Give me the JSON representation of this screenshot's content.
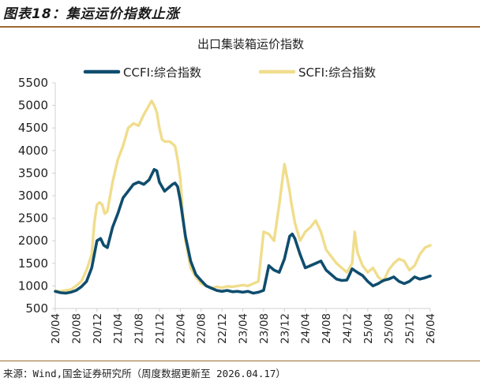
{
  "header": {
    "figure_title": "图表18：集运运价指数止涨"
  },
  "footer": {
    "source": "来源：Wind,国金证券研究所（周度数据更新至 2026.04.17）"
  },
  "colors": {
    "ccfi": "#0f4d6e",
    "scfi": "#f0dd8c",
    "rule": "#9a6a2f",
    "axis": "#d0d0d0"
  },
  "chart_data": {
    "type": "line",
    "title": "出口集装箱运价指数",
    "xlabel": "",
    "ylabel": "",
    "ylim": [
      500,
      5500
    ],
    "yticks": [
      500,
      1000,
      1500,
      2000,
      2500,
      3000,
      3500,
      4000,
      4500,
      5000,
      5500
    ],
    "xlim": [
      0,
      72
    ],
    "xtick_positions": [
      0,
      4,
      8,
      12,
      16,
      20,
      24,
      28,
      32,
      36,
      40,
      44,
      48,
      52,
      56,
      60,
      64,
      68,
      72
    ],
    "xtick_labels": [
      "20/04",
      "20/08",
      "20/12",
      "21/04",
      "21/08",
      "21/12",
      "22/04",
      "22/08",
      "22/12",
      "23/04",
      "23/08",
      "23/12",
      "24/04",
      "24/08",
      "24/12",
      "25/04",
      "25/08",
      "25/12",
      "26/04"
    ],
    "legend_position": "top",
    "series": [
      {
        "name": "CCFI:综合指数",
        "x": [
          0,
          1,
          2,
          3,
          4,
          5,
          6,
          7,
          8,
          8.7,
          9.3,
          10,
          11,
          12,
          13,
          14,
          15,
          16,
          17,
          18,
          19,
          19.5,
          20,
          20.5,
          21,
          22,
          22.5,
          23,
          23.5,
          24,
          24.5,
          25,
          26,
          27,
          28,
          29,
          30,
          31,
          32,
          33,
          34,
          35,
          36,
          37,
          38,
          39,
          40,
          41,
          42,
          43,
          44,
          45,
          45.5,
          46,
          47,
          48,
          49,
          50,
          51,
          52,
          53,
          54,
          55,
          56,
          56.5,
          57,
          58,
          59,
          60,
          61,
          62,
          63,
          64,
          65,
          66,
          67,
          68,
          69,
          70,
          71,
          72
        ],
        "values": [
          880,
          850,
          840,
          860,
          900,
          980,
          1100,
          1400,
          2000,
          2050,
          1900,
          1850,
          2300,
          2600,
          2950,
          3100,
          3250,
          3300,
          3250,
          3350,
          3580,
          3550,
          3300,
          3200,
          3100,
          3200,
          3250,
          3280,
          3200,
          2900,
          2500,
          2100,
          1550,
          1250,
          1120,
          1000,
          950,
          900,
          880,
          900,
          870,
          880,
          860,
          880,
          840,
          860,
          900,
          1450,
          1350,
          1300,
          1600,
          2100,
          2150,
          2050,
          1700,
          1400,
          1450,
          1500,
          1550,
          1350,
          1250,
          1150,
          1120,
          1130,
          1250,
          1380,
          1300,
          1230,
          1100,
          1000,
          1050,
          1120,
          1150,
          1200,
          1100,
          1050,
          1100,
          1200,
          1150,
          1180,
          1220
        ]
      },
      {
        "name": "SCFI:综合指数",
        "x": [
          0,
          1,
          2,
          3,
          4,
          5,
          6,
          7,
          7.5,
          8,
          8.5,
          9,
          9.5,
          10,
          11,
          12,
          13,
          14,
          15,
          16,
          17,
          18,
          18.5,
          19,
          19.5,
          20,
          20.5,
          21,
          22,
          23,
          23.5,
          24,
          24.5,
          25,
          26,
          27,
          28,
          29,
          30,
          31,
          32,
          33,
          34,
          35,
          36,
          37,
          38,
          39,
          40,
          41,
          42,
          43,
          44,
          45,
          45.3,
          46,
          47,
          48,
          49,
          50,
          51,
          52,
          53,
          54,
          55,
          56,
          57,
          57.5,
          58,
          59,
          60,
          61,
          62,
          63,
          64,
          65,
          66,
          67,
          68,
          69,
          70,
          71,
          72
        ],
        "values": [
          890,
          880,
          900,
          920,
          1000,
          1100,
          1350,
          1700,
          2400,
          2800,
          2850,
          2800,
          2600,
          2650,
          3300,
          3800,
          4100,
          4500,
          4600,
          4550,
          4800,
          5000,
          5100,
          5000,
          4850,
          4500,
          4250,
          4200,
          4200,
          4100,
          3800,
          3400,
          2600,
          2000,
          1400,
          1200,
          1050,
          1000,
          950,
          980,
          960,
          990,
          980,
          1000,
          1020,
          1000,
          1050,
          1100,
          2200,
          2150,
          2000,
          2800,
          3700,
          3100,
          2850,
          2400,
          2000,
          2200,
          2300,
          2450,
          2200,
          1800,
          1650,
          1500,
          1400,
          1300,
          1500,
          2200,
          1750,
          1450,
          1300,
          1400,
          1200,
          1100,
          1350,
          1500,
          1600,
          1550,
          1350,
          1450,
          1700,
          1850,
          1900
        ]
      }
    ]
  }
}
